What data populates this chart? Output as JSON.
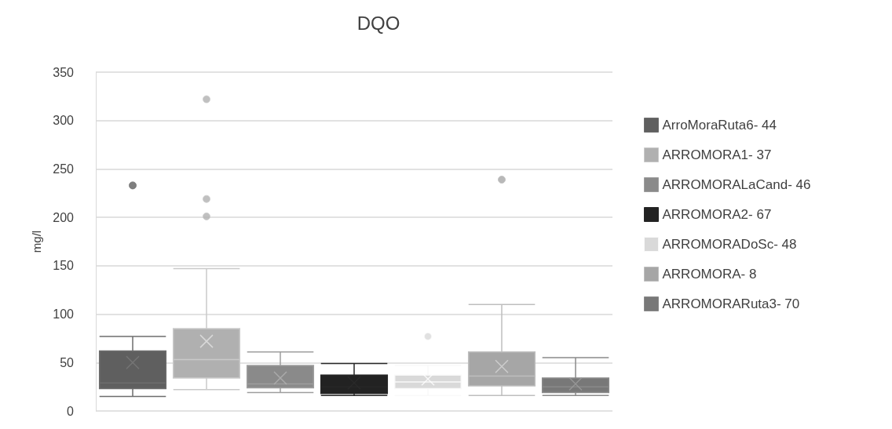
{
  "chart_data": {
    "type": "box",
    "title": "DQO",
    "ylabel": "mg/l",
    "categories": [
      null
    ],
    "series": [
      {
        "name": "ArroMoraRuta6- 44",
        "color": "#5f5f5f",
        "boxes": [
          {
            "low": 15,
            "q1": 23,
            "median": 29,
            "q3": 62,
            "high": 77,
            "mean": 50,
            "outliers": [
              233
            ]
          }
        ]
      },
      {
        "name": "ARROMORA1- 37",
        "color": "#b0b0b0",
        "boxes": [
          {
            "low": 22,
            "q1": 34,
            "median": 53,
            "q3": 85,
            "high": 147,
            "mean": 72,
            "outliers": [
              322,
              219,
              201
            ]
          }
        ]
      },
      {
        "name": "ARROMORALaCand- 46",
        "color": "#8a8a8a",
        "boxes": [
          {
            "low": 19,
            "q1": 24,
            "median": 28,
            "q3": 47,
            "high": 61,
            "mean": 34
          }
        ]
      },
      {
        "name": "ARROMORA2- 67",
        "color": "#222222",
        "boxes": [
          {
            "low": 16,
            "q1": 18,
            "median": 25,
            "q3": 37,
            "high": 49,
            "mean": 29
          }
        ]
      },
      {
        "name": "ARROMORADoSc- 48",
        "color": "#d9d9d9",
        "boxes": [
          {
            "low": 16,
            "q1": 23,
            "median": 30,
            "q3": 37,
            "high": 47,
            "mean": 33,
            "outliers": [
              77
            ]
          }
        ]
      },
      {
        "name": "ARROMORA- 8",
        "color": "#a6a6a6",
        "boxes": [
          {
            "low": 16,
            "q1": 26,
            "median": 36,
            "q3": 61,
            "high": 110,
            "mean": 46,
            "outliers": [
              239
            ]
          }
        ]
      },
      {
        "name": "ARROMORARuta3- 70",
        "color": "#787878",
        "boxes": [
          {
            "low": 16,
            "q1": 19,
            "median": 25,
            "q3": 34,
            "high": 55,
            "mean": 28
          }
        ]
      }
    ],
    "ylim": [
      0,
      350
    ],
    "yticks": [
      0,
      50,
      100,
      150,
      200,
      250,
      300,
      350
    ],
    "grid": "y",
    "legend": "right",
    "tick_labels": "y"
  }
}
